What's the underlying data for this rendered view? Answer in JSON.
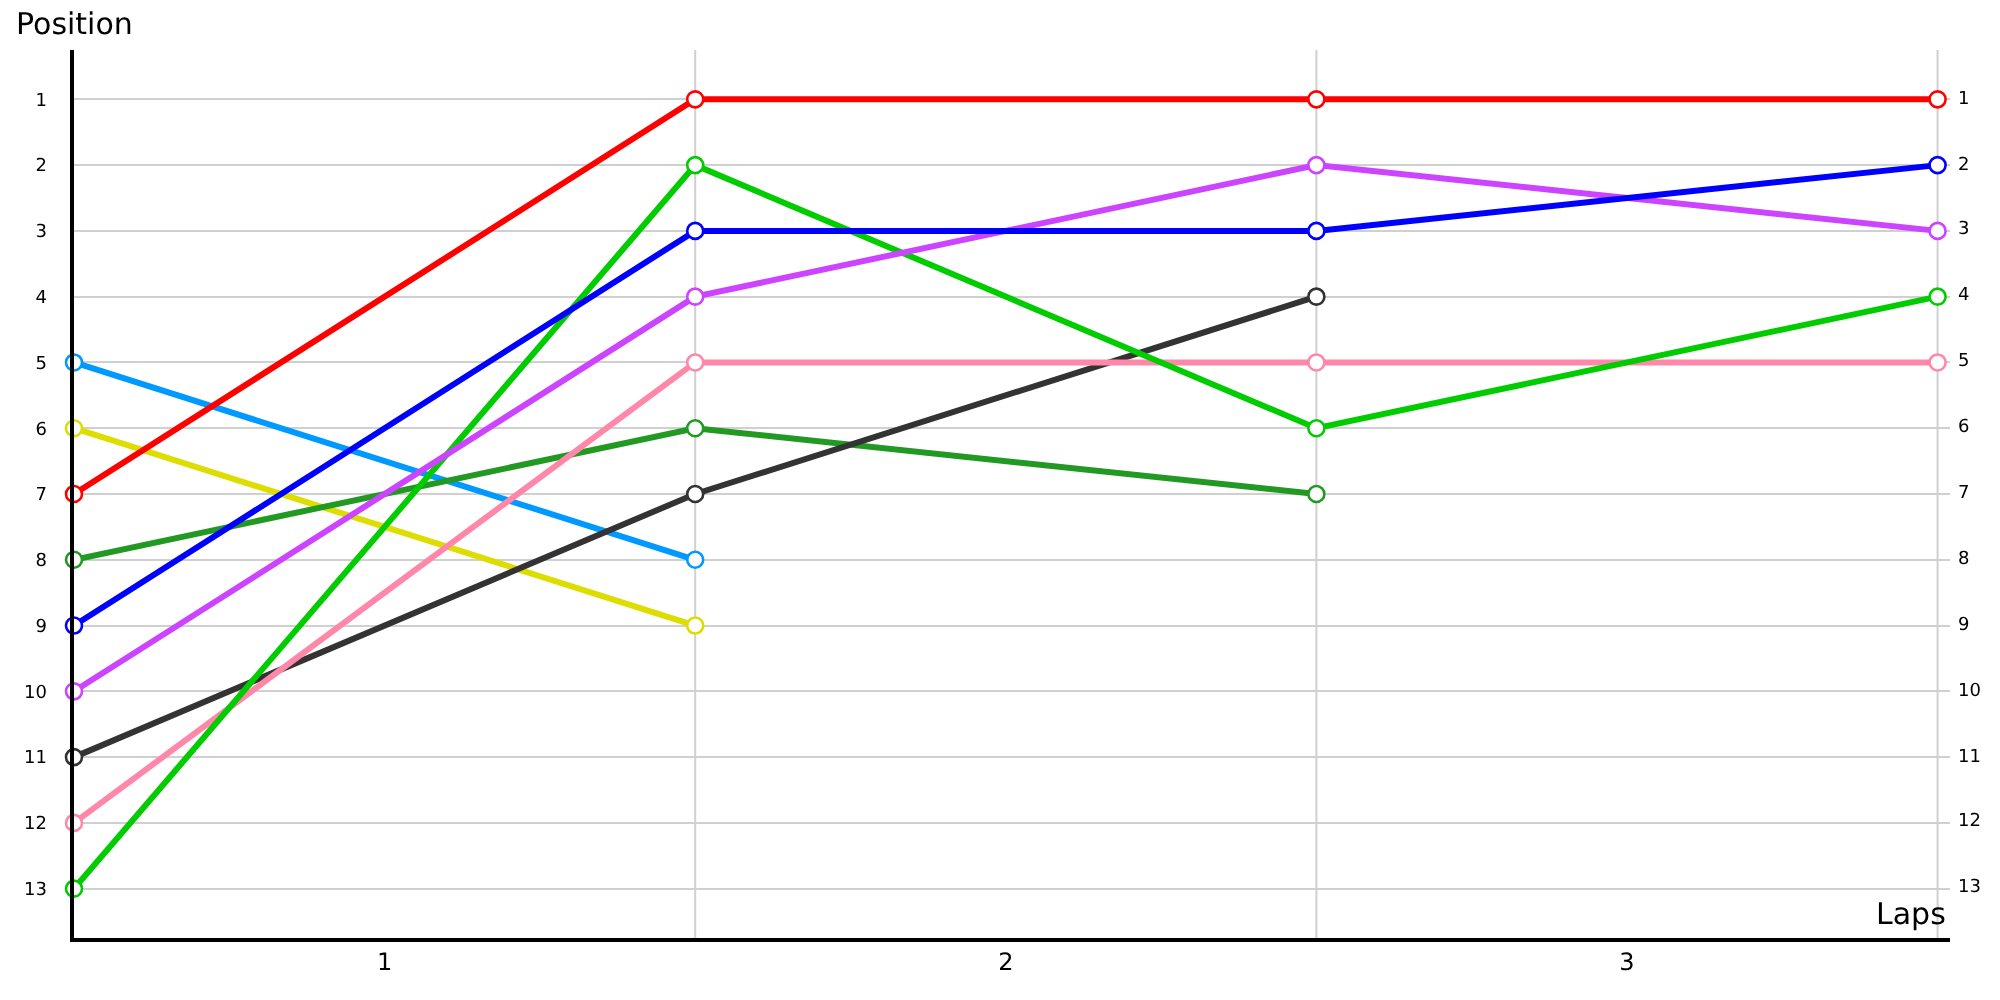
{
  "chart_data": {
    "type": "line",
    "xlabel": "Laps",
    "ylabel": "Position",
    "x": [
      0,
      1,
      2,
      3
    ],
    "xlim": [
      0,
      3.02
    ],
    "xticks": [
      {
        "value": 0.5,
        "label": "1"
      },
      {
        "value": 1.5,
        "label": "2"
      },
      {
        "value": 2.5,
        "label": "3"
      }
    ],
    "ylim": [
      13.75,
      0.25
    ],
    "yticks": [
      1,
      2,
      3,
      4,
      5,
      6,
      7,
      8,
      9,
      10,
      11,
      12,
      13
    ],
    "y2lim": [
      13.75,
      0.25
    ],
    "y2ticks": [
      1,
      2,
      3,
      4,
      5,
      6,
      7,
      8,
      9,
      10,
      11,
      12,
      13
    ],
    "grid": "y",
    "marker": "circle",
    "line_style": "solid",
    "ref_lines": [
      {
        "axis": "x",
        "value": 1,
        "color": "#d0d0d0"
      },
      {
        "axis": "x",
        "value": 2,
        "color": "#d0d0d0"
      },
      {
        "axis": "x",
        "value": 3,
        "color": "#d0d0d0"
      }
    ],
    "series": [
      {
        "color": "#0099ff",
        "values": [
          5,
          8,
          null,
          null
        ]
      },
      {
        "color": "#dddd00",
        "values": [
          6,
          9,
          null,
          null
        ]
      },
      {
        "color": "#229922",
        "values": [
          8,
          6,
          7,
          null
        ]
      },
      {
        "color": "#333333",
        "values": [
          11,
          7,
          4,
          null
        ]
      },
      {
        "color": "#ff88aa",
        "values": [
          12,
          5,
          5,
          5
        ]
      },
      {
        "color": "#00cc00",
        "values": [
          13,
          2,
          6,
          4
        ]
      },
      {
        "color": "#cc44ff",
        "values": [
          10,
          4,
          2,
          3
        ]
      },
      {
        "color": "#0000ff",
        "values": [
          9,
          3,
          3,
          2
        ]
      },
      {
        "color": "#ff0000",
        "values": [
          7,
          1,
          1,
          1
        ]
      }
    ]
  }
}
